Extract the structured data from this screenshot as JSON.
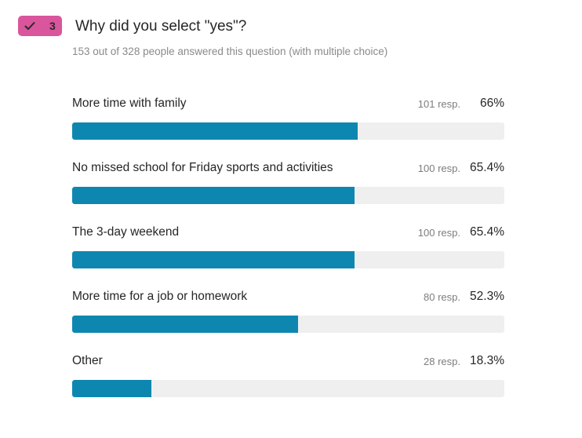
{
  "question": {
    "badge_number": "3",
    "title": "Why did you select \"yes\"?",
    "subtitle": "153 out of 328 people answered this question (with multiple choice)"
  },
  "colors": {
    "badge": "#d9559c",
    "bar_fill": "#0e87b0",
    "bar_track": "#efefef"
  },
  "chart_data": {
    "type": "bar",
    "orientation": "horizontal",
    "title": "Why did you select \"yes\"?",
    "categories": [
      "More time with family",
      "No missed school for Friday sports and activities",
      "The 3-day weekend",
      "More time for a job or homework",
      "Other"
    ],
    "responses": [
      "101 resp.",
      "100 resp.",
      "100 resp.",
      "80 resp.",
      "28 resp."
    ],
    "percent_labels": [
      "66%",
      "65.4%",
      "65.4%",
      "52.3%",
      "18.3%"
    ],
    "values": [
      66,
      65.4,
      65.4,
      52.3,
      18.3
    ],
    "xlim": [
      0,
      100
    ]
  }
}
